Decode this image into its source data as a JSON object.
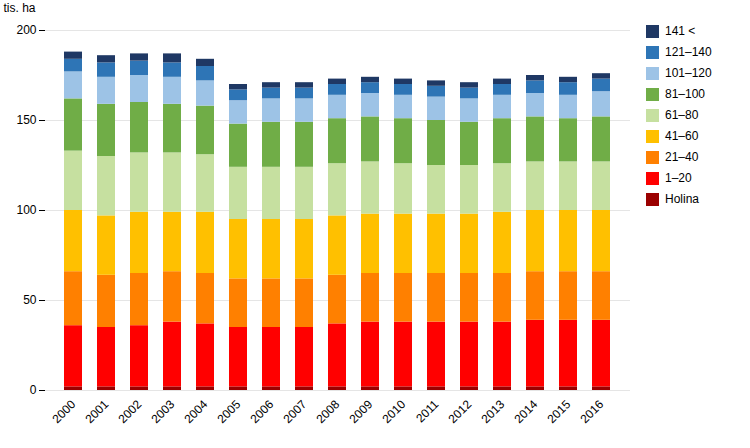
{
  "chart_data": {
    "type": "bar",
    "stacked": true,
    "ylabel": "tis. ha",
    "categories": [
      "2000",
      "2001",
      "2002",
      "2003",
      "2004",
      "2005",
      "2006",
      "2007",
      "2008",
      "2009",
      "2010",
      "2011",
      "2012",
      "2013",
      "2014",
      "2015",
      "2016"
    ],
    "series": [
      {
        "name": "Holina",
        "color": "#9b0000",
        "values": [
          2,
          2,
          2,
          2,
          2,
          2,
          2,
          2,
          2,
          2,
          2,
          2,
          2,
          2,
          2,
          2,
          2
        ]
      },
      {
        "name": "1–20",
        "color": "#ff0000",
        "values": [
          34,
          33,
          34,
          36,
          35,
          33,
          33,
          33,
          35,
          36,
          36,
          36,
          36,
          36,
          37,
          37,
          37
        ]
      },
      {
        "name": "21–40",
        "color": "#ff8000",
        "values": [
          30,
          29,
          29,
          28,
          28,
          27,
          27,
          27,
          27,
          27,
          27,
          27,
          27,
          27,
          27,
          27,
          27
        ]
      },
      {
        "name": "41–60",
        "color": "#ffc000",
        "values": [
          34,
          33,
          34,
          33,
          34,
          33,
          33,
          33,
          33,
          33,
          33,
          33,
          33,
          34,
          34,
          34,
          34
        ]
      },
      {
        "name": "61–80",
        "color": "#c6e0a0",
        "values": [
          33,
          33,
          33,
          33,
          32,
          29,
          29,
          29,
          29,
          29,
          28,
          27,
          27,
          27,
          27,
          27,
          27
        ]
      },
      {
        "name": "81–100",
        "color": "#70ad47",
        "values": [
          29,
          29,
          28,
          27,
          27,
          24,
          25,
          25,
          25,
          25,
          25,
          25,
          24,
          25,
          25,
          24,
          25
        ]
      },
      {
        "name": "101–120",
        "color": "#9dc3e6",
        "values": [
          15,
          15,
          15,
          15,
          14,
          13,
          13,
          13,
          13,
          13,
          13,
          13,
          13,
          13,
          13,
          13,
          14
        ]
      },
      {
        "name": "121–140",
        "color": "#2e75b6",
        "values": [
          7,
          8,
          8,
          8,
          8,
          6,
          6,
          6,
          6,
          6,
          6,
          6,
          6,
          6,
          7,
          7,
          7
        ]
      },
      {
        "name": "141 <",
        "color": "#1f3864",
        "values": [
          4,
          4,
          4,
          5,
          4,
          3,
          3,
          3,
          3,
          3,
          3,
          3,
          3,
          3,
          3,
          3,
          3
        ]
      }
    ],
    "ylim": [
      0,
      200
    ],
    "yticks": [
      0,
      50,
      100,
      150,
      200
    ],
    "grid": true,
    "legend": "right"
  }
}
